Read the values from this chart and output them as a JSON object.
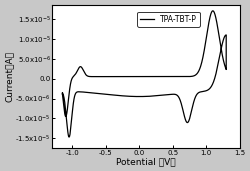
{
  "title": "",
  "xlabel": "Potential （V）",
  "ylabel": "Current（A）",
  "legend_label": "TPA-TBT-P",
  "xlim": [
    -1.3,
    1.5
  ],
  "ylim": [
    -1.75e-05,
    1.85e-05
  ],
  "xticks": [
    -1.0,
    -0.5,
    0.0,
    0.5,
    1.0,
    1.5
  ],
  "yticks": [
    -1.5e-05,
    -1e-05,
    -5e-06,
    0.0,
    5e-06,
    1e-05,
    1.5e-05
  ],
  "line_color": "#000000",
  "background_color": "#ffffff",
  "figure_bg": "#c8c8c8"
}
